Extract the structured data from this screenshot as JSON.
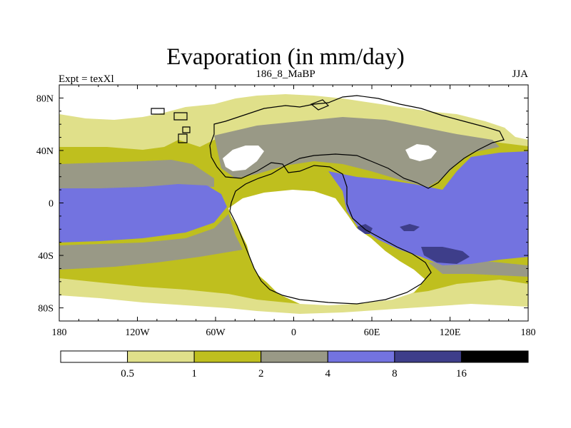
{
  "title": "Evaporation (in mm/day)",
  "left_label": "Expt = texXl",
  "center_label": "186_8_MaBP",
  "right_label": "JJA",
  "x_ticks": [
    {
      "value": -180,
      "label": "180"
    },
    {
      "value": -120,
      "label": "120W"
    },
    {
      "value": -60,
      "label": "60W"
    },
    {
      "value": 0,
      "label": "0"
    },
    {
      "value": 60,
      "label": "60E"
    },
    {
      "value": 120,
      "label": "120E"
    },
    {
      "value": 180,
      "label": "180"
    }
  ],
  "y_ticks": [
    {
      "value": 80,
      "label": "80N"
    },
    {
      "value": 40,
      "label": "40N"
    },
    {
      "value": 0,
      "label": "0"
    },
    {
      "value": -40,
      "label": "40S"
    },
    {
      "value": -80,
      "label": "80S"
    }
  ],
  "lon_range": [
    -180,
    180
  ],
  "lat_range": [
    -90,
    90
  ],
  "colorbar": {
    "colors": [
      "#ffffff",
      "#e0e08a",
      "#bfbf1e",
      "#999986",
      "#7373e0",
      "#3e3e8a",
      "#000000"
    ],
    "labels": [
      "0.5",
      "1",
      "2",
      "4",
      "8",
      "16"
    ]
  },
  "colors": {
    "background": "#ffffff",
    "ocean_base": "#bfbf1e",
    "coastline": "#000000"
  }
}
